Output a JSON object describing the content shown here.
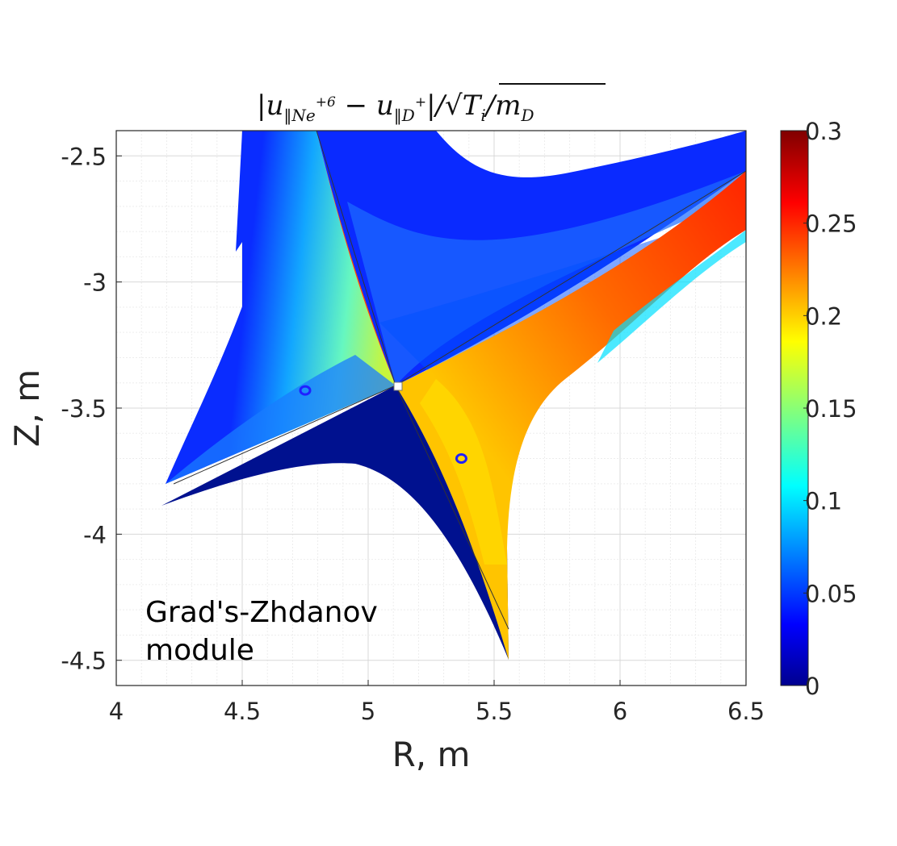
{
  "chart_data": {
    "type": "heatmap",
    "title": "|u‖Ne+6 − u‖D+| / √(Ti/mD)",
    "title_parts": {
      "abs_open": "|u",
      "sub1": "‖Ne",
      "sup1": "+6",
      "minus": " − u",
      "sub2": "‖D",
      "sup2": "+",
      "rest": "|/√",
      "ti": "T",
      "ti_sub": "i",
      "slash": "/m",
      "md_sub": "D"
    },
    "xlabel": "R, m",
    "ylabel": "Z, m",
    "xlim": [
      4,
      6.5
    ],
    "ylim": [
      -4.6,
      -2.4
    ],
    "x_ticks": [
      "4",
      "4.5",
      "5",
      "5.5",
      "6",
      "6.5"
    ],
    "y_ticks": [
      "-2.5",
      "-3",
      "-3.5",
      "-4",
      "-4.5"
    ],
    "colorbar": {
      "colormap": "jet",
      "range": [
        0,
        0.3
      ],
      "ticks": [
        "0",
        "0.05",
        "0.1",
        "0.15",
        "0.2",
        "0.25",
        "0.3"
      ]
    },
    "grid": true,
    "annotation": [
      "Grad's-Zhdanov",
      "module"
    ],
    "x_point": {
      "R": 5.12,
      "Z": -3.42
    },
    "markers": [
      {
        "R": 4.75,
        "Z": -3.43
      },
      {
        "R": 5.37,
        "Z": -3.7
      }
    ]
  }
}
